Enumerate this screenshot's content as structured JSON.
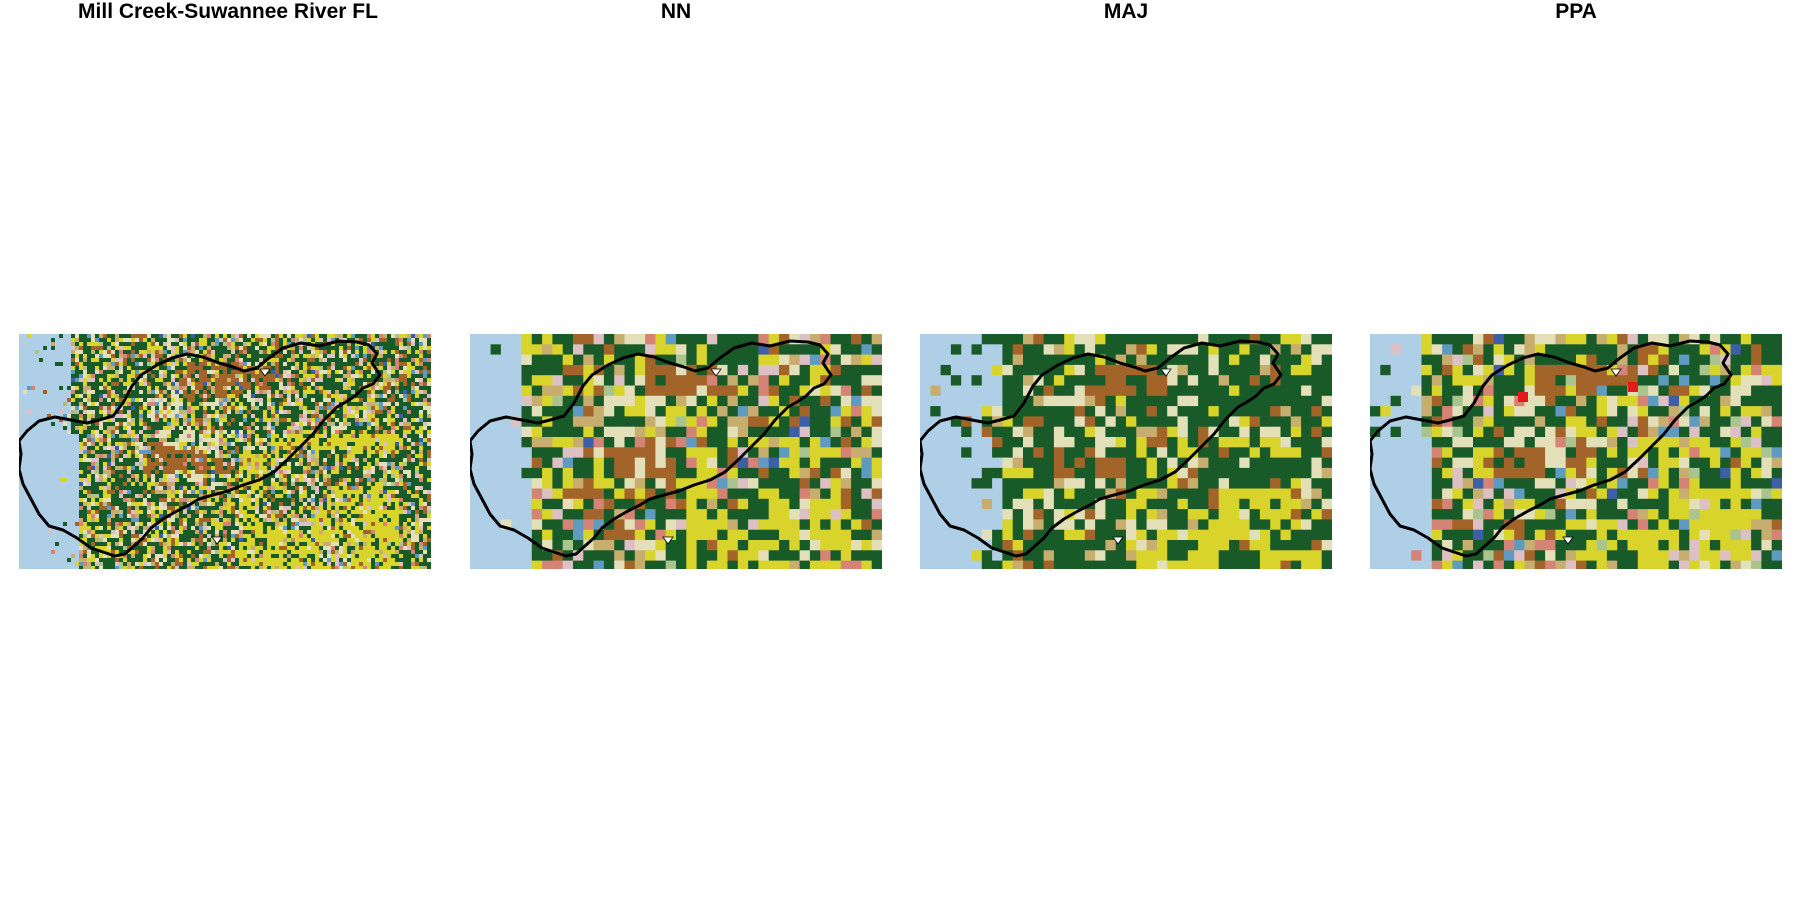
{
  "panels": [
    {
      "title": "Mill Creek-Suwannee River FL",
      "resolution": "fine"
    },
    {
      "title": "NN",
      "resolution": "coarse"
    },
    {
      "title": "MAJ",
      "resolution": "coarse"
    },
    {
      "title": "PPA",
      "resolution": "coarse"
    }
  ],
  "legend_palette": {
    "water": "#AFCFE6",
    "forest_dark": "#195B28",
    "agriculture_yellow": "#D8D42C",
    "agriculture_brown": "#A3642A",
    "pale_tan": "#E3E0B9",
    "khaki": "#C7AE6F",
    "pink": "#DDC0C4",
    "salmon": "#D48374",
    "wetland_blue": "#5F9AC0",
    "deep_blue": "#3D5FA8",
    "light_green": "#A9C48F",
    "red": "#E31A1C",
    "dark_red": "#B20E1A",
    "white": "#FFFFFF"
  },
  "boundary_color": "#000000"
}
